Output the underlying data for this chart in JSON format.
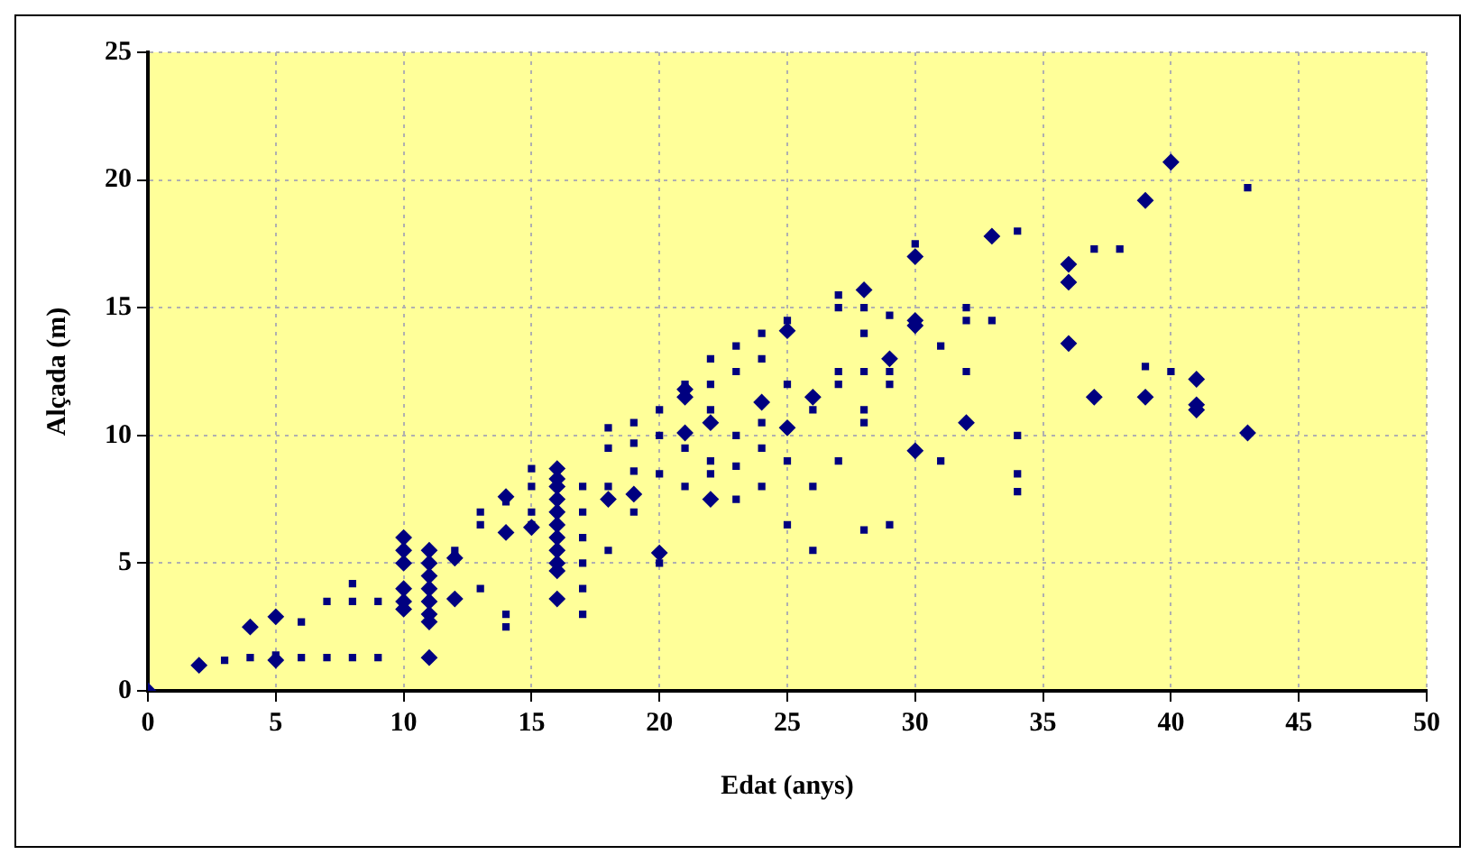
{
  "chart_data": {
    "type": "scatter",
    "xlabel": "Edat (anys)",
    "ylabel": "Alçada (m)",
    "xlim": [
      0,
      50
    ],
    "xticks": [
      0,
      5,
      10,
      15,
      20,
      25,
      30,
      35,
      40,
      45,
      50
    ],
    "ylim": [
      0,
      25
    ],
    "yticks": [
      0,
      5,
      10,
      15,
      20,
      25
    ],
    "grid": true,
    "legend": false,
    "series": [
      {
        "color": "#000080",
        "marker": "diamond",
        "x": [
          0,
          2,
          4,
          5,
          5,
          10,
          10,
          10,
          10,
          10,
          10,
          11,
          11,
          11,
          11,
          11,
          11,
          11,
          11,
          12,
          12,
          14,
          14,
          15,
          16,
          16,
          16,
          16,
          16,
          16,
          16,
          16,
          16,
          16,
          16,
          18,
          19,
          20,
          21,
          21,
          21,
          22,
          22,
          24,
          25,
          25,
          26,
          28,
          29,
          30,
          30,
          30,
          30,
          32,
          33,
          36,
          36,
          36,
          37,
          39,
          39,
          40,
          41,
          41,
          41,
          43
        ],
        "values": [
          0,
          1,
          2.5,
          2.9,
          1.2,
          6,
          5.5,
          5,
          4,
          3.5,
          3.2,
          5.5,
          5,
          4.5,
          4,
          3.5,
          3,
          2.7,
          1.3,
          5.2,
          3.6,
          7.6,
          6.2,
          6.4,
          8.7,
          8.3,
          8,
          7.5,
          7,
          6.5,
          6,
          5.5,
          5,
          4.7,
          3.6,
          7.5,
          7.7,
          5.4,
          11.8,
          11.5,
          10.1,
          10.5,
          7.5,
          11.3,
          14.1,
          10.3,
          11.5,
          15.7,
          13,
          17,
          14.5,
          14.3,
          9.4,
          10.5,
          17.8,
          16.7,
          16,
          13.6,
          11.5,
          11.5,
          19.2,
          20.7,
          12.2,
          11.2,
          11,
          10.1
        ]
      },
      {
        "color": "#000080",
        "marker": "square",
        "x": [
          3,
          4,
          5,
          6,
          6,
          7,
          7,
          8,
          8,
          8,
          9,
          9,
          12,
          13,
          13,
          13,
          14,
          14,
          14,
          15,
          15,
          15,
          15,
          17,
          17,
          17,
          17,
          17,
          17,
          18,
          18,
          18,
          18,
          19,
          19,
          19,
          19,
          20,
          20,
          20,
          20,
          21,
          21,
          21,
          22,
          22,
          22,
          22,
          22,
          23,
          23,
          23,
          23,
          23,
          24,
          24,
          24,
          24,
          24,
          25,
          25,
          25,
          25,
          26,
          26,
          26,
          27,
          27,
          27,
          27,
          27,
          28,
          28,
          28,
          28,
          28,
          28,
          29,
          29,
          29,
          29,
          30,
          31,
          31,
          32,
          32,
          32,
          33,
          34,
          34,
          34,
          34,
          37,
          38,
          39,
          40,
          43
        ],
        "values": [
          1.2,
          1.3,
          1.4,
          2.7,
          1.3,
          3.5,
          1.3,
          4.2,
          3.5,
          1.3,
          3.5,
          1.3,
          5.5,
          7,
          6.5,
          4,
          7.4,
          3,
          2.5,
          8.7,
          8,
          7,
          6.5,
          8,
          7,
          6,
          5,
          4,
          3,
          10.3,
          9.5,
          8,
          5.5,
          10.5,
          9.7,
          8.6,
          7,
          11,
          10,
          8.5,
          5,
          12,
          9.5,
          8,
          13,
          12,
          11,
          9,
          8.5,
          13.5,
          12.5,
          10,
          8.8,
          7.5,
          14,
          13,
          10.5,
          9.5,
          8,
          14.5,
          12,
          9,
          6.5,
          11,
          8,
          5.5,
          15.5,
          15,
          12.5,
          12,
          9,
          15,
          14,
          12.5,
          11,
          10.5,
          6.3,
          14.7,
          12.5,
          12,
          6.5,
          17.5,
          13.5,
          9,
          15,
          14.5,
          12.5,
          14.5,
          18,
          10,
          8.5,
          7.8,
          17.3,
          17.3,
          12.7,
          12.5,
          19.7
        ]
      }
    ]
  }
}
